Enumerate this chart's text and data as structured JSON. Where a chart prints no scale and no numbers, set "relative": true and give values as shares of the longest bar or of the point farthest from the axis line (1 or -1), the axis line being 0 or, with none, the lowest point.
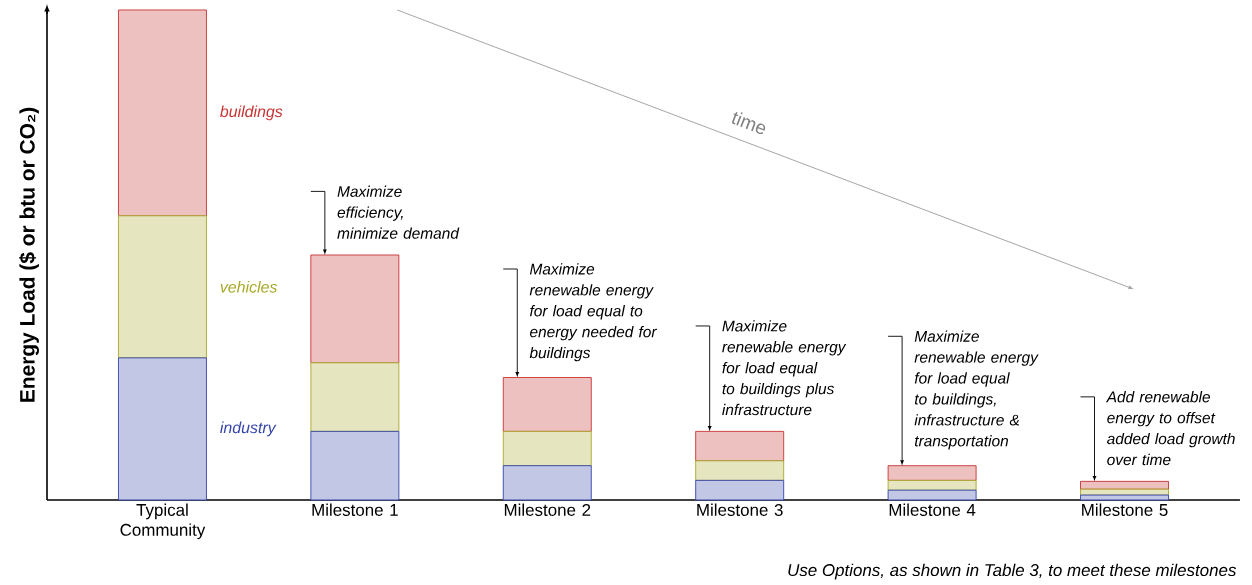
{
  "chart_data": {
    "type": "bar",
    "stacked": true,
    "relative": true,
    "ylabel": "Energy Load ($ or btu or CO₂)",
    "categories": [
      "Typical Community",
      "Milestone 1",
      "Milestone 2",
      "Milestone 3",
      "Milestone 4",
      "Milestone 5"
    ],
    "series": [
      {
        "name": "industry",
        "color": "#3344aa",
        "values": [
          0.29,
          0.14,
          0.07,
          0.04,
          0.02,
          0.01
        ]
      },
      {
        "name": "vehicles",
        "color": "#a8a82a",
        "values": [
          0.29,
          0.14,
          0.07,
          0.04,
          0.02,
          0.012
        ]
      },
      {
        "name": "buildings",
        "color": "#c83232",
        "values": [
          0.42,
          0.22,
          0.11,
          0.06,
          0.03,
          0.016
        ]
      }
    ],
    "annotations": [
      {
        "text": "Maximize efficiency, minimize demand",
        "x": "Milestone 1",
        "y": 0.5
      },
      {
        "text": "Maximize renewable energy for load equal to energy needed for buildings",
        "x": "Milestone 2",
        "y": 0.25
      },
      {
        "text": "Maximize renewable energy for load equal to buildings plus infrastructure",
        "x": "Milestone 3",
        "y": 0.14
      },
      {
        "text": "Maximize renewable energy for load equal to buildings, infrastructure & transportation",
        "x": "Milestone 4",
        "y": 0.07
      },
      {
        "text": "Add renewable energy to offset added load growth over time",
        "x": "Milestone 5",
        "y": 0.038
      },
      "time",
      "Use Options, as shown in Table 3, to meet these milestones"
    ]
  }
}
